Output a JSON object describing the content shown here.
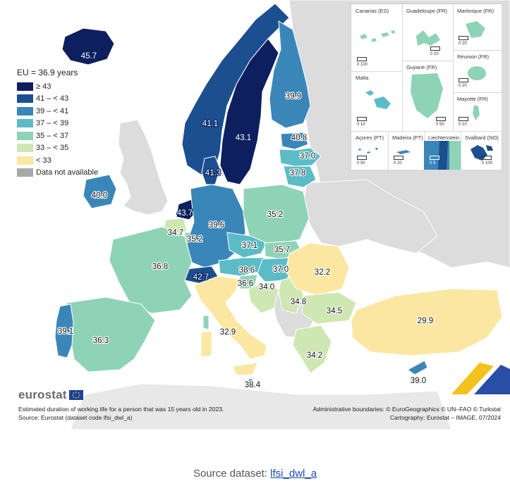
{
  "legend": {
    "title": "EU = 36.9 years",
    "classes": [
      {
        "label": "≥ 43",
        "color": "#0d1f5e"
      },
      {
        "label": "41 – < 43",
        "color": "#1b4f8f"
      },
      {
        "label": "39 – < 41",
        "color": "#3a86b8"
      },
      {
        "label": "37 – < 39",
        "color": "#5bbcc8"
      },
      {
        "label": "35 – < 37",
        "color": "#8fd3b6"
      },
      {
        "label": "33 – < 35",
        "color": "#cfe7b2"
      },
      {
        "label": "< 33",
        "color": "#fbe7a1"
      },
      {
        "label": "Data not available",
        "color": "#a8a8a8"
      }
    ]
  },
  "map_values": {
    "iceland": "45.7",
    "norway": "41.1",
    "sweden": "43.1",
    "finland": "39.9",
    "estonia": "40.8",
    "latvia": "37.0",
    "lithuania": "37.8",
    "denmark": "41.3",
    "ireland": "40.0",
    "netherlands": "43.7",
    "belgium": "34.7",
    "luxembourg": "35.2",
    "germany": "39.6",
    "poland": "35.2",
    "czechia": "37.1",
    "slovakia": "35.7",
    "hungary": "37.0",
    "austria": "38.6",
    "switzerland": "42.7",
    "slovenia": "36.6",
    "croatia": "34.0",
    "serbia": "34.8",
    "romania": "32.2",
    "bulgaria": "34.5",
    "france": "36.8",
    "italy": "32.9",
    "malta": "38.4",
    "greece": "34.2",
    "turkiye": "29.9",
    "cyprus": "39.0",
    "portugal": "39.1",
    "spain": "36.3"
  },
  "colors": {
    "non_eu_land": "#dcdcdc",
    "sea": "#ffffff",
    "border": "#ffffff",
    "eurostat_grey": "#6b6b6b",
    "link": "#1a4db3"
  },
  "insets": [
    {
      "name": "Canarias (ES)",
      "scale": "0   100"
    },
    {
      "name": "Guadeloupe (FR)",
      "scale": "0   20"
    },
    {
      "name": "Martinique (FR)",
      "scale": "0   20"
    },
    {
      "name": "Réunion (FR)",
      "scale": "0   20"
    },
    {
      "name": "Malta",
      "scale": "0   10"
    },
    {
      "name": "Guyane (FR)",
      "scale": "0  50"
    },
    {
      "name": "Mayotte (FR)",
      "scale": "0   10"
    },
    {
      "name": "Açores (PT)",
      "scale": "0   50"
    },
    {
      "name": "Madeira (PT)",
      "scale": "0   20"
    },
    {
      "name": "Liechtenstein",
      "scale": "0   5"
    },
    {
      "name": "Svalbard (NO)",
      "scale": "0 100"
    }
  ],
  "branding": {
    "logo_text": "eurostat"
  },
  "footer": {
    "caption_line_1": "Estimated duration of working life for a person that was 15 years old in 2023.",
    "caption_line_2": "Source: Eurostat (dataset code lfsi_dwl_a)",
    "credit_line_1": "Administrative boundaries: © EuroGeographics © UN–FAO © Turkstat",
    "credit_line_2": "Cartography: Eurostat – IMAGE, 07/2024"
  },
  "source": {
    "prefix": "Source dataset: ",
    "link_text": "lfsi_dwl_a"
  }
}
